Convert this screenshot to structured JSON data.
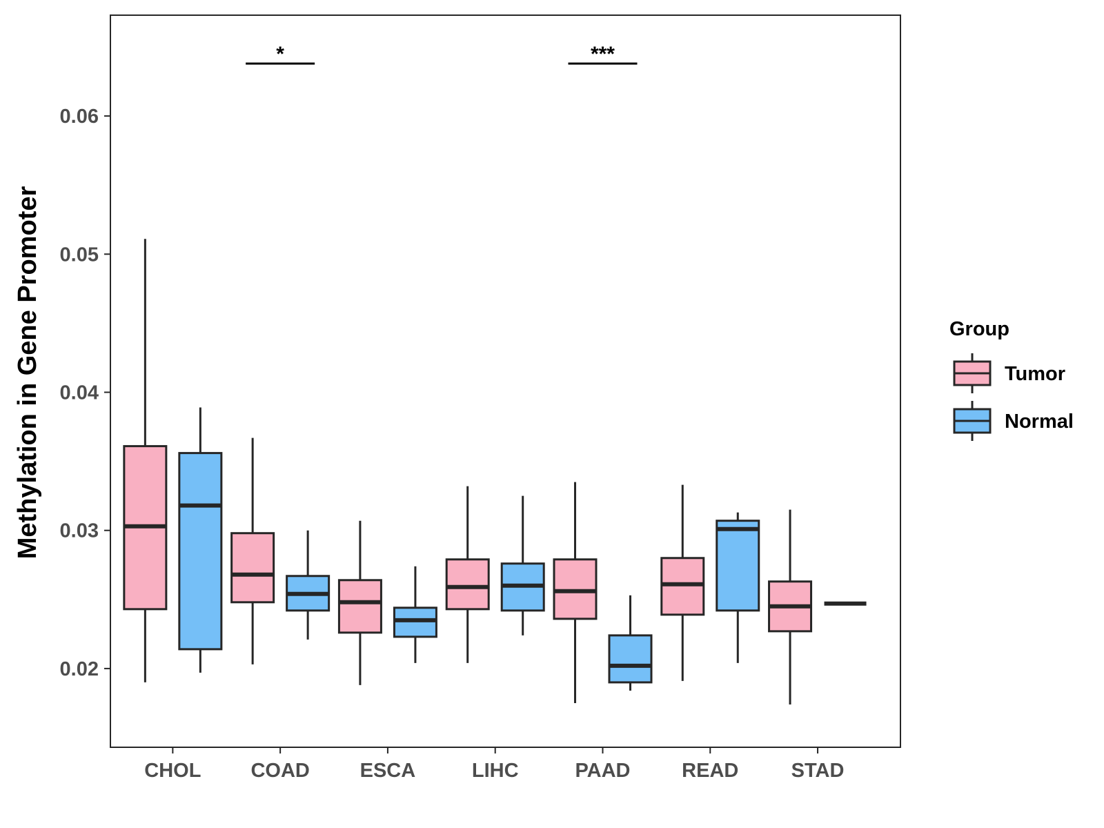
{
  "chart_data": {
    "type": "boxplot",
    "title": "",
    "xlabel": "",
    "ylabel": "Methylation in Gene Promoter",
    "ylim": [
      0.0143,
      0.0673
    ],
    "yticks": [
      0.02,
      0.03,
      0.04,
      0.05,
      0.06
    ],
    "ytick_labels": [
      "0.02",
      "0.03",
      "0.04",
      "0.05",
      "0.06"
    ],
    "grid": false,
    "categories": [
      "CHOL",
      "COAD",
      "ESCA",
      "LIHC",
      "PAAD",
      "READ",
      "STAD"
    ],
    "legend": {
      "title": "Group",
      "position": "right",
      "entries": [
        "Tumor",
        "Normal"
      ]
    },
    "series": [
      {
        "name": "Tumor",
        "color": "#f9b0c2",
        "boxes": [
          {
            "min": 0.019,
            "q1": 0.0243,
            "median": 0.0303,
            "q3": 0.0361,
            "max": 0.0511
          },
          {
            "min": 0.0203,
            "q1": 0.0248,
            "median": 0.0268,
            "q3": 0.0298,
            "max": 0.0367
          },
          {
            "min": 0.0188,
            "q1": 0.0226,
            "median": 0.0248,
            "q3": 0.0264,
            "max": 0.0307
          },
          {
            "min": 0.0204,
            "q1": 0.0243,
            "median": 0.0259,
            "q3": 0.0279,
            "max": 0.0332
          },
          {
            "min": 0.0175,
            "q1": 0.0236,
            "median": 0.0256,
            "q3": 0.0279,
            "max": 0.0335
          },
          {
            "min": 0.0191,
            "q1": 0.0239,
            "median": 0.0261,
            "q3": 0.028,
            "max": 0.0333
          },
          {
            "min": 0.0174,
            "q1": 0.0227,
            "median": 0.0245,
            "q3": 0.0263,
            "max": 0.0315
          }
        ]
      },
      {
        "name": "Normal",
        "color": "#75bff7",
        "boxes": [
          {
            "min": 0.0197,
            "q1": 0.0214,
            "median": 0.0318,
            "q3": 0.0356,
            "max": 0.0389
          },
          {
            "min": 0.0221,
            "q1": 0.0242,
            "median": 0.0254,
            "q3": 0.0267,
            "max": 0.03
          },
          {
            "min": 0.0204,
            "q1": 0.0223,
            "median": 0.0235,
            "q3": 0.0244,
            "max": 0.0274
          },
          {
            "min": 0.0224,
            "q1": 0.0242,
            "median": 0.026,
            "q3": 0.0276,
            "max": 0.0325
          },
          {
            "min": 0.0184,
            "q1": 0.019,
            "median": 0.0202,
            "q3": 0.0224,
            "max": 0.0253
          },
          {
            "min": 0.0204,
            "q1": 0.0242,
            "median": 0.0301,
            "q3": 0.0307,
            "max": 0.0313
          },
          {
            "min": 0.0247,
            "q1": 0.0247,
            "median": 0.0247,
            "q3": 0.0247,
            "max": 0.0247
          }
        ]
      }
    ],
    "annotations": [
      {
        "category": "COAD",
        "label": "*",
        "y": 0.0638
      },
      {
        "category": "PAAD",
        "label": "***",
        "y": 0.0638
      }
    ]
  }
}
